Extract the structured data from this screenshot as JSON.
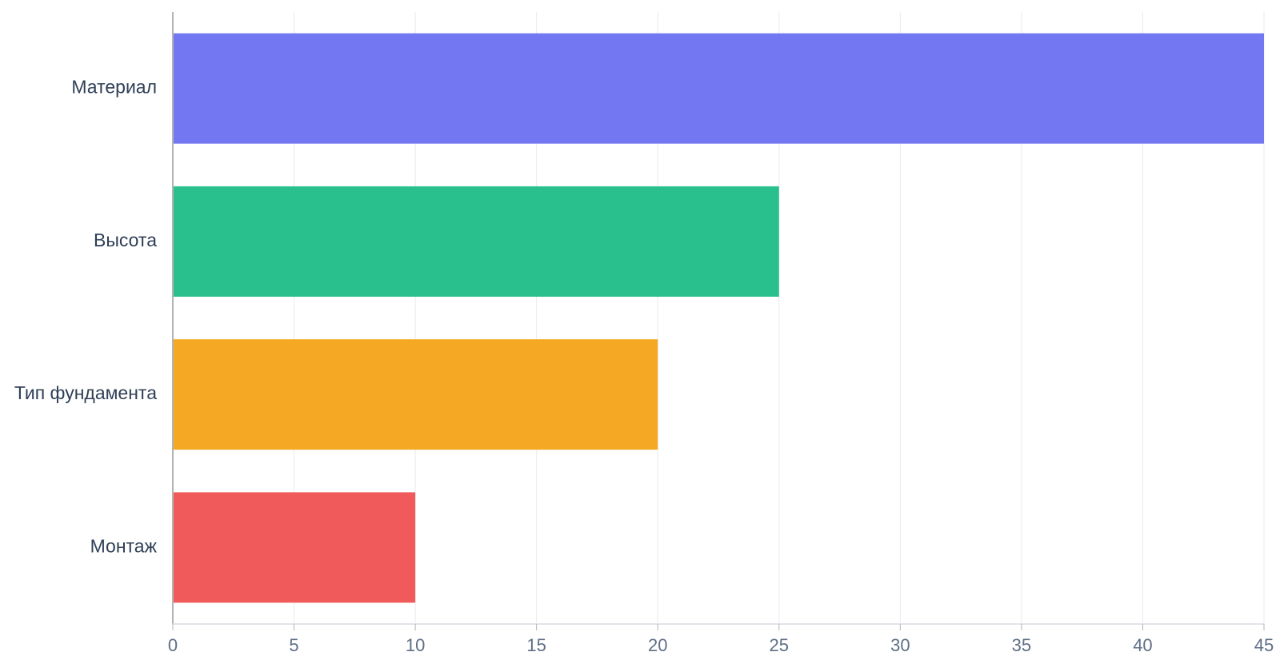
{
  "chart_data": {
    "type": "bar",
    "orientation": "horizontal",
    "categories": [
      "Материал",
      "Высота",
      "Тип фундамента",
      "Монтаж"
    ],
    "values": [
      45,
      25,
      20,
      10
    ],
    "bar_colors": [
      "#7377f2",
      "#2ac08e",
      "#f4a823",
      "#f05a5a"
    ],
    "xlim": [
      0,
      45
    ],
    "x_ticks": [
      0,
      5,
      10,
      15,
      20,
      25,
      30,
      35,
      40,
      45
    ],
    "grid": true,
    "title": "",
    "xlabel": "",
    "ylabel": ""
  }
}
